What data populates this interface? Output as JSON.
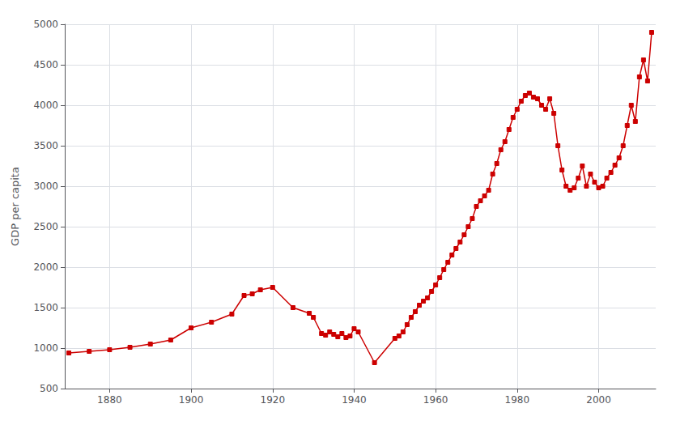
{
  "chart_data": {
    "type": "line",
    "ylabel": "GDP per capita",
    "color": "#cc0000",
    "marker": "square",
    "grid": true,
    "xlim": [
      1869,
      2014
    ],
    "ylim": [
      500,
      5000
    ],
    "xticks": [
      1880,
      1900,
      1920,
      1940,
      1960,
      1980,
      2000
    ],
    "yticks": [
      500,
      1000,
      1500,
      2000,
      2500,
      3000,
      3500,
      4000,
      4500,
      5000
    ],
    "x": [
      1870,
      1875,
      1880,
      1885,
      1890,
      1895,
      1900,
      1905,
      1910,
      1913,
      1915,
      1917,
      1920,
      1925,
      1929,
      1930,
      1932,
      1933,
      1934,
      1935,
      1936,
      1937,
      1938,
      1939,
      1940,
      1941,
      1945,
      1950,
      1951,
      1952,
      1953,
      1954,
      1955,
      1956,
      1957,
      1958,
      1959,
      1960,
      1961,
      1962,
      1963,
      1964,
      1965,
      1966,
      1967,
      1968,
      1969,
      1970,
      1971,
      1972,
      1973,
      1974,
      1975,
      1976,
      1977,
      1978,
      1979,
      1980,
      1981,
      1982,
      1983,
      1984,
      1985,
      1986,
      1987,
      1988,
      1989,
      1990,
      1991,
      1992,
      1993,
      1994,
      1995,
      1996,
      1997,
      1998,
      1999,
      2000,
      2001,
      2002,
      2003,
      2004,
      2005,
      2006,
      2007,
      2008,
      2009,
      2010,
      2011,
      2012,
      2013
    ],
    "values": [
      940,
      960,
      980,
      1010,
      1050,
      1100,
      1250,
      1320,
      1420,
      1650,
      1670,
      1720,
      1750,
      1500,
      1430,
      1380,
      1180,
      1160,
      1200,
      1170,
      1140,
      1180,
      1130,
      1150,
      1240,
      1200,
      820,
      1120,
      1150,
      1200,
      1290,
      1380,
      1450,
      1530,
      1580,
      1620,
      1700,
      1780,
      1870,
      1970,
      2060,
      2150,
      2230,
      2310,
      2400,
      2500,
      2600,
      2750,
      2820,
      2880,
      2950,
      3150,
      3280,
      3450,
      3550,
      3700,
      3850,
      3950,
      4050,
      4120,
      4150,
      4100,
      4080,
      4000,
      3950,
      4080,
      3900,
      3500,
      3200,
      3000,
      2950,
      2980,
      3100,
      3250,
      3000,
      3150,
      3050,
      2980,
      3000,
      3100,
      3170,
      3260,
      3350,
      3500,
      3750,
      4000,
      3800,
      4350,
      4560,
      4300,
      4900
    ]
  }
}
